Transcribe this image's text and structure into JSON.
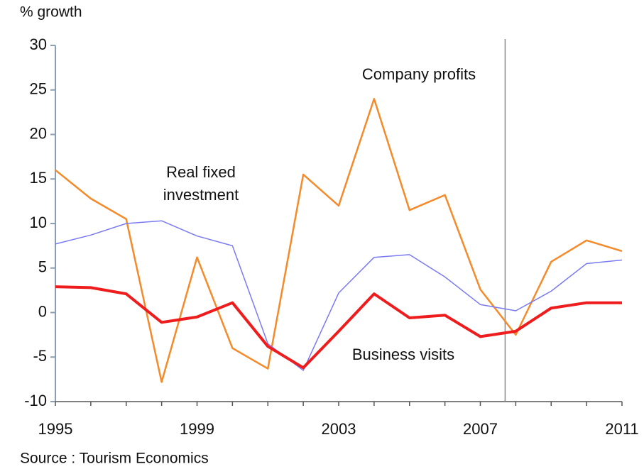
{
  "chart_data": {
    "type": "line",
    "y_axis_label": "% growth",
    "source": "Source : Tourism Economics",
    "x": [
      1995,
      1996,
      1997,
      1998,
      1999,
      2000,
      2001,
      2002,
      2003,
      2004,
      2005,
      2006,
      2007,
      2008,
      2009,
      2010,
      2011
    ],
    "xlim": [
      1995,
      2011
    ],
    "xticks": [
      1995,
      1999,
      2003,
      2007,
      2011
    ],
    "ylim": [
      -10,
      30
    ],
    "yticks": [
      -10,
      -5,
      0,
      5,
      10,
      15,
      20,
      25,
      30
    ],
    "vline": 2007.7,
    "series": [
      {
        "name": "Company profits",
        "color": "#f58a2a",
        "width": 2.5,
        "values": [
          16,
          12.8,
          10.5,
          -7.8,
          6.2,
          -4,
          -6.3,
          15.5,
          12,
          24,
          11.5,
          13.2,
          2.6,
          -2.5,
          5.7,
          8.1,
          6.9
        ]
      },
      {
        "name": "Real fixed investment",
        "color": "#7a7af2",
        "width": 1.5,
        "values": [
          7.7,
          8.7,
          10,
          10.3,
          8.6,
          7.5,
          -3.5,
          -6.5,
          2.2,
          6.2,
          6.5,
          4,
          0.9,
          0.2,
          2.4,
          5.5,
          5.9
        ]
      },
      {
        "name": "Business visits",
        "color": "#ee1c1c",
        "width": 4,
        "values": [
          2.9,
          2.8,
          2.1,
          -1.1,
          -0.5,
          1.1,
          -3.8,
          -6.2,
          -2.1,
          2.1,
          -0.6,
          -0.3,
          -2.7,
          -2.1,
          0.5,
          1.1,
          1.1
        ]
      }
    ]
  }
}
